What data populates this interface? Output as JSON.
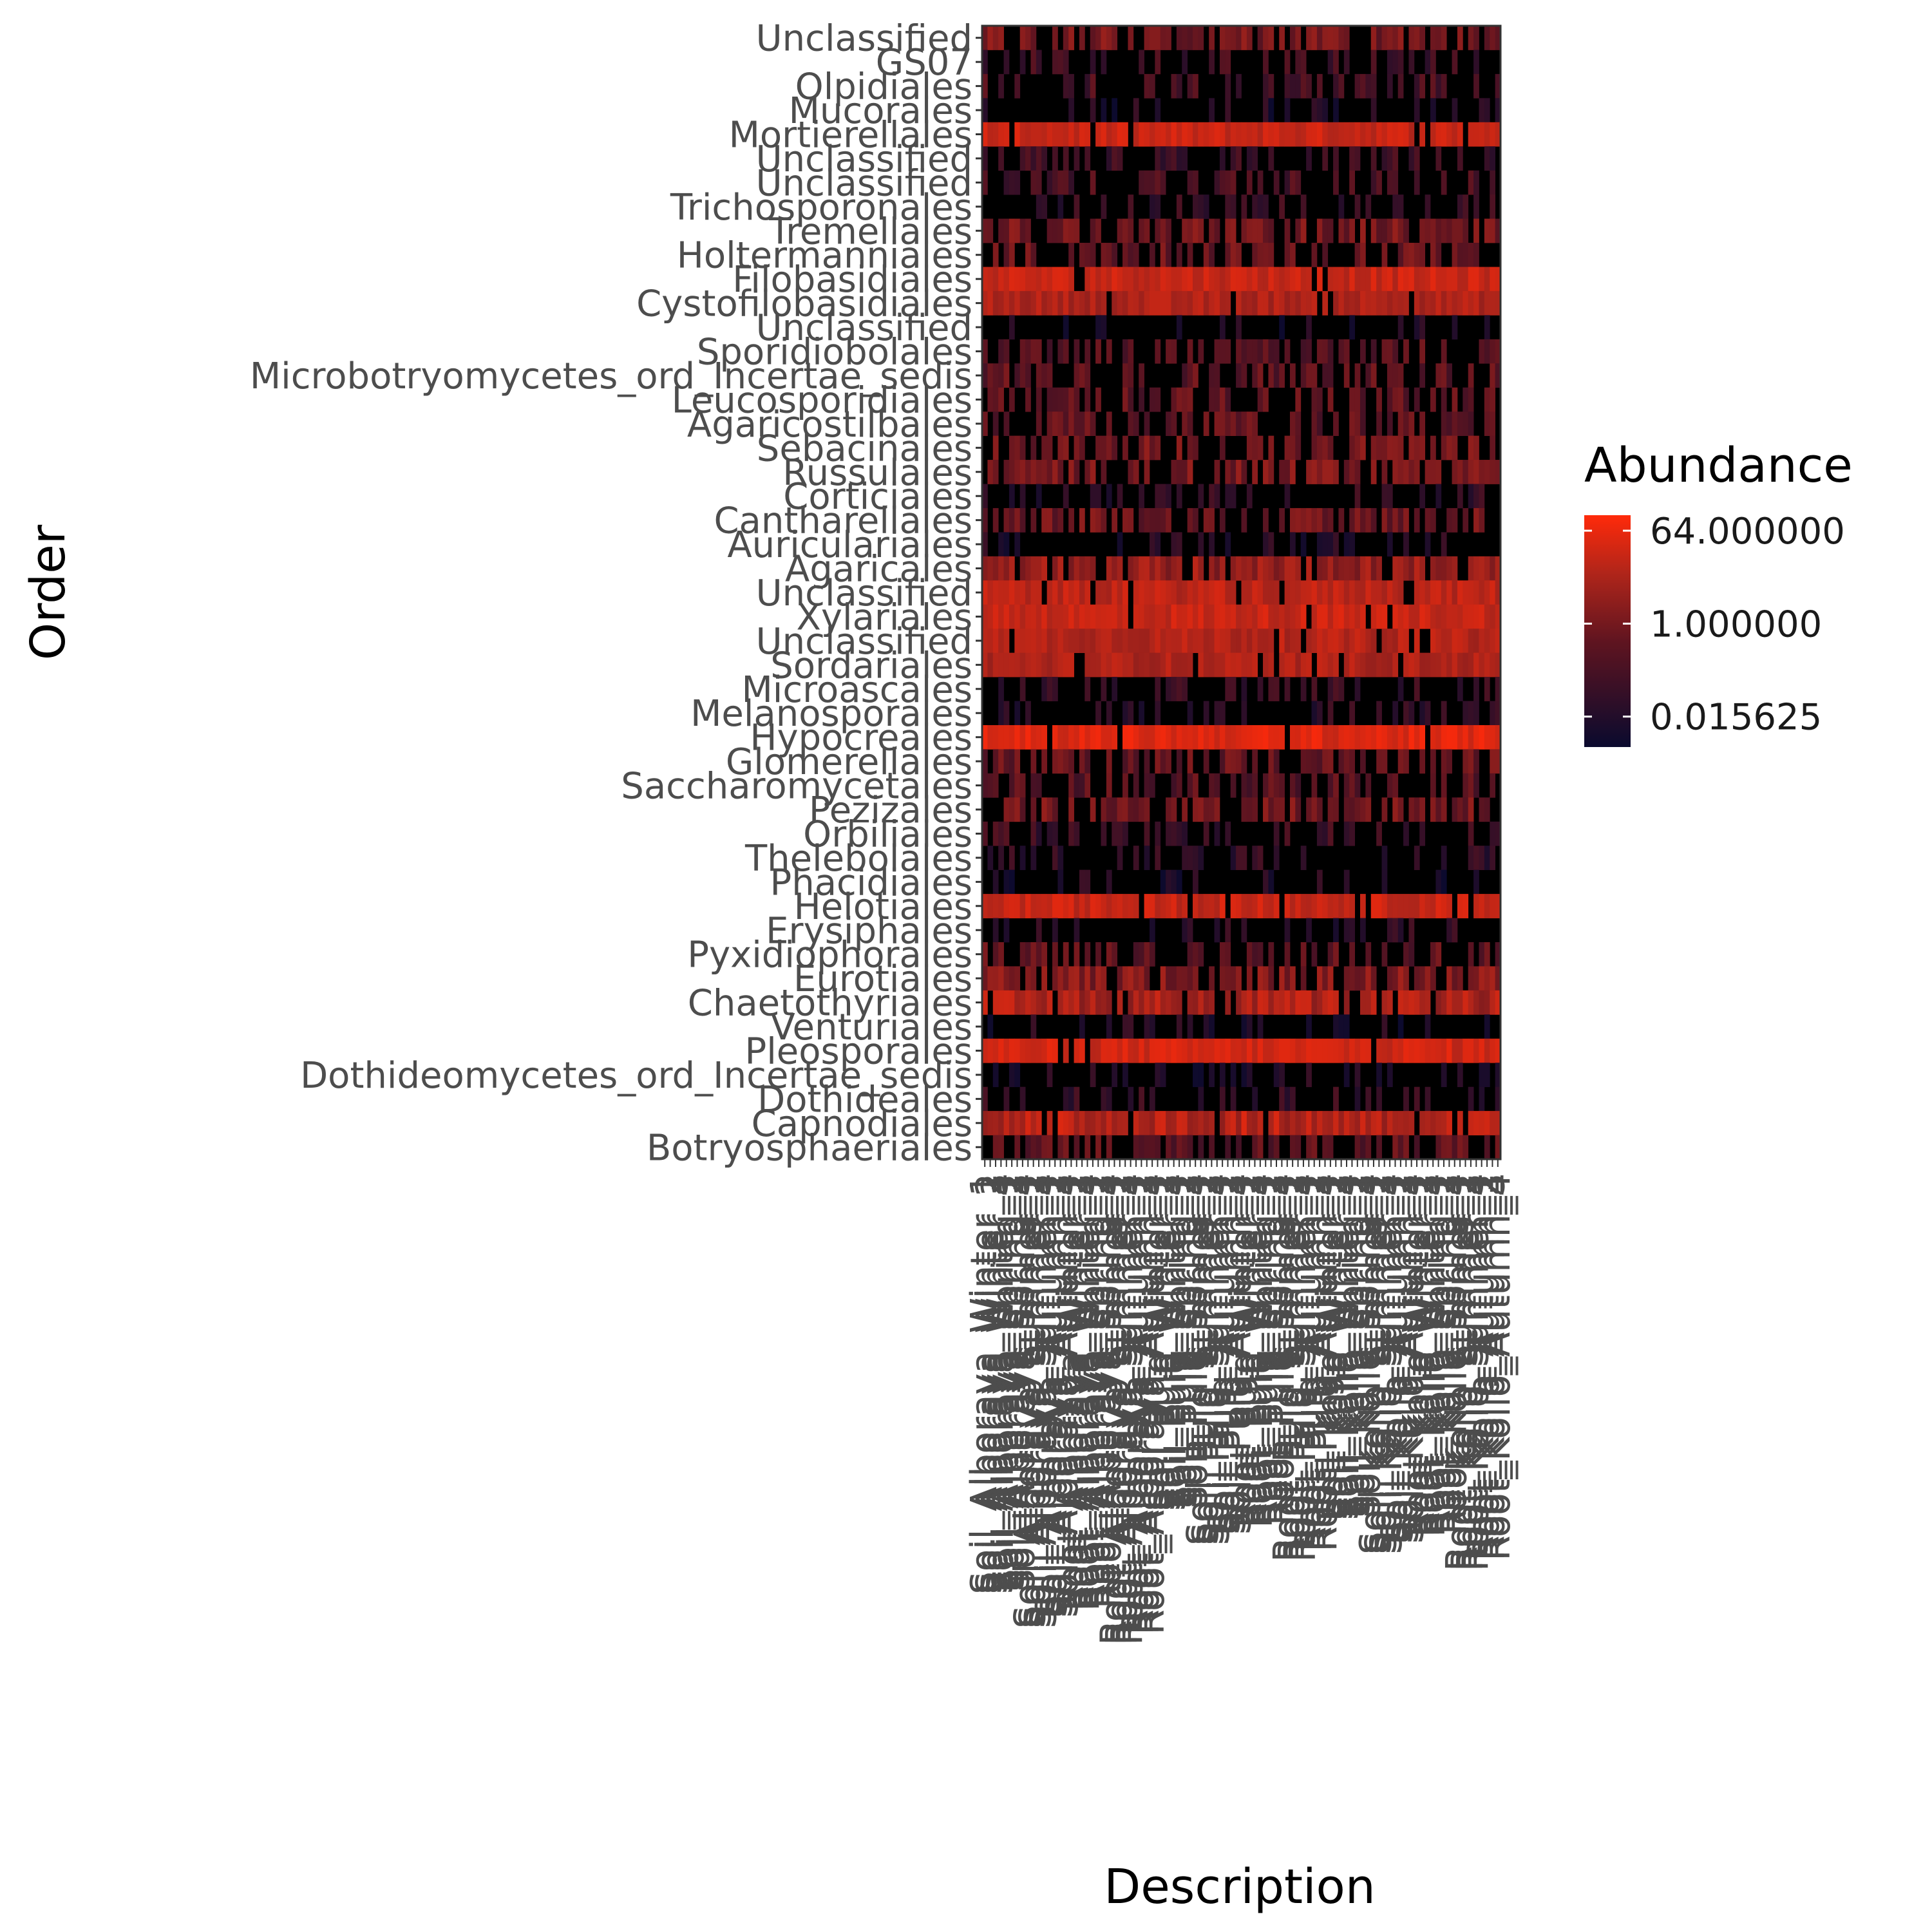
{
  "chart_data": {
    "type": "heatmap",
    "title": "",
    "xlabel": "Description",
    "ylabel": "Order",
    "color_scale": "log2",
    "color_low": "#0a0a2e",
    "color_high": "#ff2a0a",
    "background": "#000000",
    "rows": [
      "Unclassified",
      "GS07",
      "Olpidiales",
      "Mucorales",
      "Mortierellales",
      "Unclassified",
      "Unclassified",
      "Trichosporonales",
      "Tremellales",
      "Holtermanniales",
      "Filobasidiales",
      "Cystofilobasidiales",
      "Unclassified",
      "Sporidiobolales",
      "Microbotryomycetes_ord_Incertae_sedis",
      "Leucosporidiales",
      "Agaricostilbales",
      "Sebacinales",
      "Russulales",
      "Corticiales",
      "Cantharellales",
      "Auriculariales",
      "Agaricales",
      "Unclassified",
      "Xylariales",
      "Unclassified",
      "Sordariales",
      "Microascales",
      "Melanosporales",
      "Hypocreales",
      "Glomerellales",
      "Saccharomycetales",
      "Pezizales",
      "Orbiliales",
      "Thelebolales",
      "Phacidiales",
      "Helotiales",
      "Erysiphales",
      "Pyxidiophorales",
      "Eurotiales",
      "Chaetothyriales",
      "Venturiales",
      "Pleosporales",
      "Dothideomycetes_ord_Incertae_sedis",
      "Dothideales",
      "Capnodiales",
      "Botryosphaeriales"
    ],
    "row_mean_abundance": [
      0.6,
      0.05,
      0.08,
      0.01,
      24,
      0.05,
      0.08,
      0.03,
      0.6,
      0.3,
      24,
      10,
      0.01,
      0.15,
      0.2,
      0.2,
      0.2,
      0.5,
      0.6,
      0.02,
      0.4,
      0.01,
      2,
      16,
      24,
      12,
      10,
      0.03,
      0.02,
      50,
      0.3,
      0.15,
      0.5,
      0.04,
      0.02,
      0.01,
      24,
      0.02,
      0.2,
      1,
      4,
      0.01,
      32,
      0.01,
      0.03,
      6,
      0.2
    ],
    "column_labels": [
      "Soil_Alboraya_Winter_1",
      "Soil_Alboraya_Winter_2",
      "Soil_Alboraya_Winter_3",
      "Soil_Alboraya_Winter_4",
      "Soil_Alboraya_Spring_1",
      "Soil_Alboraya_Spring_2",
      "Soil_Alboraya_Spring_3",
      "Soil_Alboraya_Spring_4",
      "Soil_Alboraya_Summer_1",
      "Soil_Alboraya_Summer_2",
      "Soil_Alboraya_Summer_3",
      "Soil_Alboraya_Summer_4",
      "Soil_Alboraya_Autumn_1",
      "Soil_Alboraya_Autumn_2",
      "Soil_Alboraya_Autumn_3",
      "Soil_Alboraya_Autumn_4",
      "Root_Alboraya_Winter_1",
      "Root_Alboraya_Winter_2",
      "Root_Alboraya_Winter_3",
      "Root_Alboraya_Winter_4",
      "Root_Alboraya_Spring_1",
      "Root_Alboraya_Spring_2",
      "Root_Alboraya_Spring_3",
      "Root_Alboraya_Spring_4",
      "Root_Alboraya_Summer_1",
      "Root_Alboraya_Summer_2",
      "Root_Alboraya_Summer_3",
      "Root_Alboraya_Summer_4",
      "Root_Alboraya_Autumn_1",
      "Root_Alboraya_Autumn_2",
      "Root_Alboraya_Autumn_3",
      "Root_Alboraya_Autumn_4",
      "Soil_Puig_Winter_1",
      "Soil_Puig_Winter_2",
      "Soil_Puig_Winter_3",
      "Soil_Puig_Winter_4",
      "Soil_Puig_Spring_1",
      "Soil_Puig_Spring_2",
      "Soil_Puig_Spring_3",
      "Soil_Puig_Spring_4",
      "Soil_Puig_Summer_1",
      "Soil_Puig_Summer_2",
      "Soil_Puig_Summer_3",
      "Soil_Puig_Summer_4",
      "Soil_Puig_Autumn_1",
      "Soil_Puig_Autumn_2",
      "Soil_Puig_Autumn_3",
      "Soil_Puig_Autumn_4",
      "Root_Puig_Winter_1",
      "Root_Puig_Winter_2",
      "Root_Puig_Winter_3",
      "Root_Puig_Winter_4",
      "Root_Puig_Spring_1",
      "Root_Puig_Spring_2",
      "Root_Puig_Spring_3",
      "Root_Puig_Spring_4",
      "Root_Puig_Summer_1",
      "Root_Puig_Summer_2",
      "Root_Puig_Summer_3",
      "Root_Puig_Summer_4",
      "Root_Puig_Autumn_1",
      "Root_Puig_Autumn_2",
      "Root_Puig_Autumn_3",
      "Root_Puig_Autumn_4",
      "Soil_Kollo_Winter_1",
      "Soil_Kollo_Winter_2",
      "Soil_Kollo_Winter_3",
      "Soil_Kollo_Winter_4",
      "Soil_Kollo_Spring_1",
      "Soil_Kollo_Spring_2",
      "Soil_Kollo_Spring_3",
      "Soil_Kollo_Spring_4",
      "Soil_Kollo_Summer_1",
      "Soil_Kollo_Summer_2",
      "Soil_Kollo_Summer_3",
      "Soil_Kollo_Summer_4",
      "Soil_Kollo_Autumn_1",
      "Soil_Kollo_Autumn_2",
      "Soil_Kollo_Autumn_3",
      "Soil_Kollo_Autumn_4",
      "Root_Kollo_Winter_1",
      "Root_Kollo_Winter_2",
      "Root_Kollo_Winter_3",
      "Root_Kollo_Winter_4",
      "Root_Kollo_Spring_1",
      "Root_Kollo_Spring_2",
      "Root_Kollo_Spring_3",
      "Root_Kollo_Spring_4",
      "Root_Kollo_Summer_1",
      "Root_Kollo_Summer_2",
      "Root_Kollo_Summer_3",
      "Root_Kollo_Summer_4",
      "Root_Kollo_Autumn_1",
      "Root_Kollo_Autumn_2",
      "Root_Kollo_Autumn_3",
      "Root_Kollo_Autumn_4"
    ],
    "legend": {
      "title": "Abundance",
      "labels": [
        "64.000000",
        "1.000000",
        "0.015625"
      ],
      "values": [
        64,
        1,
        0.015625
      ],
      "min": 0.004,
      "max": 128,
      "position": "right"
    }
  }
}
